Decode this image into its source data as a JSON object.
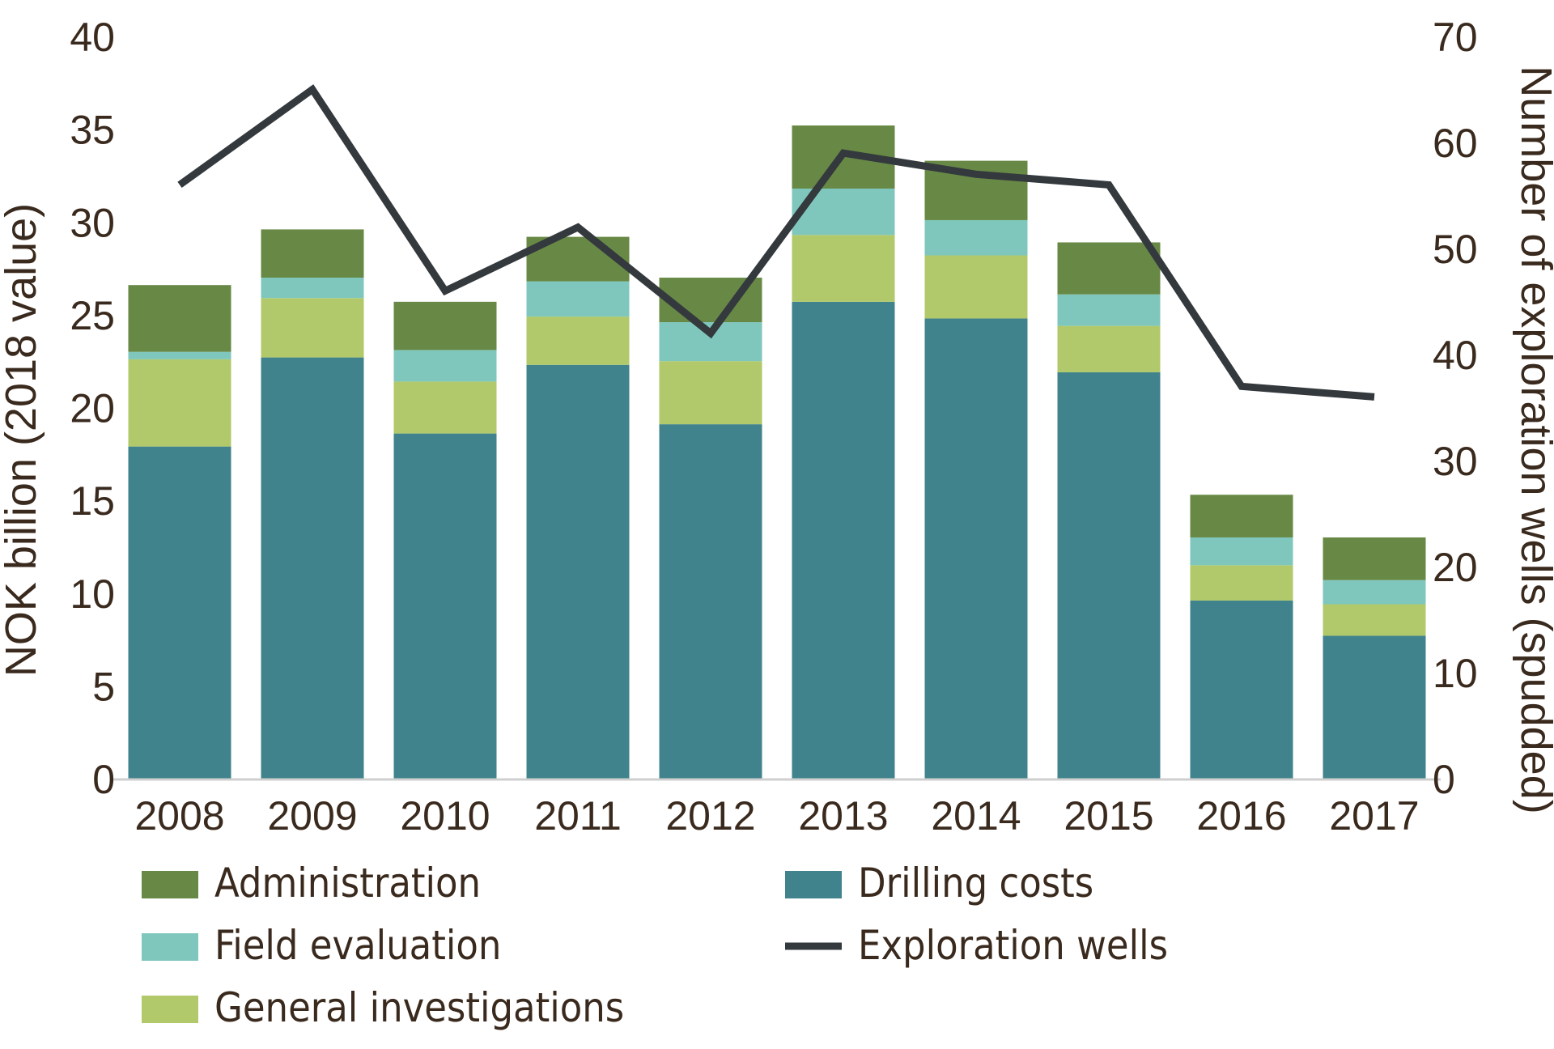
{
  "chart_data": {
    "type": "bar",
    "stacked": true,
    "categories": [
      "2008",
      "2009",
      "2010",
      "2011",
      "2012",
      "2013",
      "2014",
      "2015",
      "2016",
      "2017"
    ],
    "series": [
      {
        "name": "Drilling costs",
        "color": "#41838c",
        "values": [
          17.9,
          22.7,
          18.6,
          22.3,
          19.1,
          25.7,
          24.8,
          21.9,
          9.6,
          7.7
        ]
      },
      {
        "name": "General investigations",
        "color": "#b1c96a",
        "values": [
          4.7,
          3.2,
          2.8,
          2.6,
          3.4,
          3.6,
          3.4,
          2.5,
          1.9,
          1.7
        ]
      },
      {
        "name": "Field evaluation",
        "color": "#7fc7bd",
        "values": [
          0.4,
          1.1,
          1.7,
          1.9,
          2.1,
          2.5,
          1.9,
          1.7,
          1.5,
          1.3
        ]
      },
      {
        "name": "Administration",
        "color": "#688946",
        "values": [
          3.6,
          2.6,
          2.6,
          2.4,
          2.4,
          3.4,
          3.2,
          2.8,
          2.3,
          2.3
        ]
      }
    ],
    "line_series": {
      "name": "Exploration wells",
      "color": "#33393d",
      "axis": "right",
      "values": [
        56,
        65,
        46,
        52,
        42,
        59,
        57,
        56,
        37,
        36
      ]
    },
    "ylabel": "NOK billion (2018 value)",
    "y2label": "Number of exploration wells (spudded)",
    "ylim": [
      0,
      40
    ],
    "y2lim": [
      0,
      70
    ],
    "yticks": [
      "0",
      "5",
      "10",
      "15",
      "20",
      "25",
      "30",
      "35",
      "40"
    ],
    "y2ticks": [
      "0",
      "10",
      "20",
      "30",
      "40",
      "50",
      "60",
      "70"
    ],
    "grid": false,
    "legend": {
      "position": "bottom",
      "items": [
        {
          "label": "Administration",
          "color": "#688946",
          "kind": "box"
        },
        {
          "label": "Field evaluation",
          "color": "#7fc7bd",
          "kind": "box"
        },
        {
          "label": "General investigations",
          "color": "#b1c96a",
          "kind": "box"
        },
        {
          "label": "Drilling costs",
          "color": "#41838c",
          "kind": "box"
        },
        {
          "label": "Exploration wells",
          "color": "#33393d",
          "kind": "line"
        }
      ]
    },
    "axis_color": "#cfcfcf",
    "text_color": "#3a2a1e"
  }
}
